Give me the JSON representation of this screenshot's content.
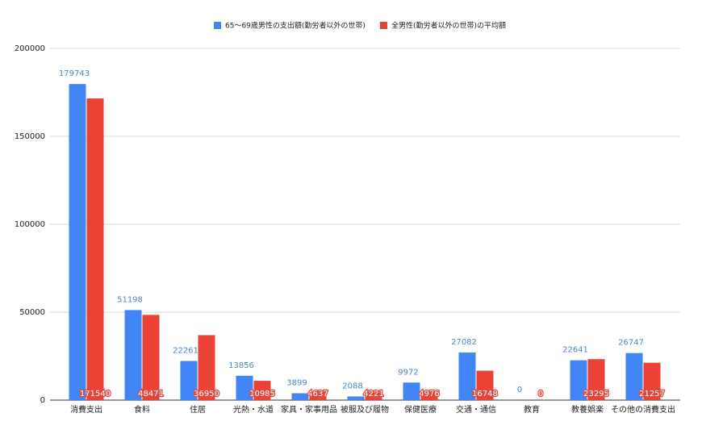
{
  "chart_data": {
    "type": "bar",
    "categories": [
      "消費支出",
      "食料",
      "住居",
      "光熱・水道",
      "家具・家事用品",
      "被服及び履物",
      "保健医療",
      "交通・通信",
      "教育",
      "教養娯楽",
      "その他の消費支出"
    ],
    "series": [
      {
        "name": "65〜69歳男性の支出額(勤労者以外の世帯)",
        "color": "#4285f4",
        "values": [
          179743,
          51198,
          22261,
          13856,
          3899,
          2088,
          9972,
          27082,
          0,
          22641,
          26747
        ]
      },
      {
        "name": "全男性(勤労者以外の世帯)の平均額",
        "color": "#ea4335",
        "values": [
          171540,
          48471,
          36950,
          10985,
          4637,
          4221,
          4976,
          16748,
          0,
          23295,
          21257
        ]
      }
    ],
    "ylim": [
      0,
      200000
    ],
    "yticks": [
      0,
      50000,
      100000,
      150000,
      200000
    ],
    "grid": true
  }
}
